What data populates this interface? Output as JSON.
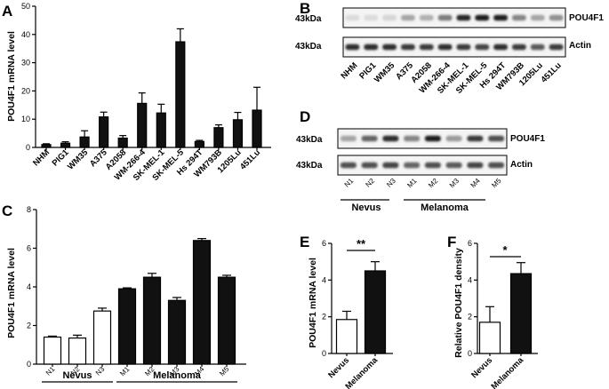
{
  "panels": {
    "a": "A",
    "b": "B",
    "c": "C",
    "d": "D",
    "e": "E",
    "f": "F"
  },
  "chart_data": [
    {
      "panel": "A",
      "type": "bar",
      "ylabel": "POU4F1 mRNA level",
      "ylim": [
        0,
        50
      ],
      "yticks": [
        "0",
        "10",
        "20",
        "30",
        "40",
        "50"
      ],
      "categories": [
        "NHM",
        "PIG1",
        "WM35",
        "A375",
        "A2058",
        "WM-266-4",
        "SK-MEL-1",
        "SK-MEL-5",
        "Hs 294T",
        "WM793B",
        "1205Lu",
        "451Lu"
      ],
      "values": [
        1,
        1.5,
        3.7,
        10.8,
        3.3,
        15.6,
        12.2,
        37.4,
        2.1,
        7,
        9.8,
        13.2
      ],
      "errors": [
        0.3,
        0.5,
        2.2,
        1.7,
        0.9,
        3.7,
        3.1,
        4.6,
        0.4,
        1,
        2.6,
        8.1
      ]
    },
    {
      "panel": "C",
      "type": "bar",
      "ylabel": "POU4F1 mRNA level",
      "ylim": [
        0,
        8
      ],
      "yticks": [
        "0",
        "2",
        "4",
        "6",
        "8"
      ],
      "categories": [
        "N1",
        "N2",
        "N3",
        "M1",
        "M2",
        "M3",
        "M4",
        "M5"
      ],
      "values": [
        1.4,
        1.35,
        2.75,
        3.9,
        4.5,
        3.3,
        6.4,
        4.5
      ],
      "errors": [
        0.05,
        0.15,
        0.15,
        0.05,
        0.2,
        0.15,
        0.1,
        0.1
      ],
      "groups": [
        {
          "label": "Nevus",
          "range": [
            0,
            2
          ]
        },
        {
          "label": "Melanoma",
          "range": [
            3,
            7
          ]
        }
      ]
    },
    {
      "panel": "E",
      "type": "bar",
      "ylabel": "POU4F1 mRNA level",
      "ylim": [
        0,
        6
      ],
      "yticks": [
        "0",
        "2",
        "4",
        "6"
      ],
      "categories": [
        "Nevus",
        "Melanoma"
      ],
      "values": [
        1.85,
        4.5
      ],
      "errors": [
        0.45,
        0.5
      ],
      "significance": "**"
    },
    {
      "panel": "F",
      "type": "bar",
      "ylabel": "Relative POU4F1 density",
      "ylim": [
        0,
        6
      ],
      "yticks": [
        "0",
        "2",
        "4",
        "6"
      ],
      "categories": [
        "Nevus",
        "Melanoma"
      ],
      "values": [
        1.7,
        4.35
      ],
      "errors": [
        0.85,
        0.6
      ],
      "significance": "*"
    }
  ],
  "blot_b": {
    "marker": "43kDa",
    "rows": [
      {
        "label": "POU4F1",
        "intensity": [
          0.05,
          0.05,
          0.08,
          0.3,
          0.25,
          0.5,
          0.9,
          0.95,
          0.95,
          0.45,
          0.3,
          0.4
        ]
      },
      {
        "label": "Actin",
        "intensity": [
          0.85,
          0.85,
          0.85,
          0.8,
          0.8,
          0.85,
          0.8,
          0.75,
          0.85,
          0.8,
          0.65,
          0.8
        ]
      }
    ],
    "lanes": [
      "NHM",
      "PIG1",
      "WM35",
      "A375",
      "A2058",
      "WM-266-4",
      "SK-MEL-1",
      "SK-MEL-5",
      "Hs 294T",
      "WM793B",
      "1205Lu",
      "451Lu"
    ]
  },
  "blot_d": {
    "marker": "43kDa",
    "rows": [
      {
        "label": "POU4F1",
        "intensity": [
          0.3,
          0.6,
          0.85,
          0.45,
          0.95,
          0.35,
          0.8,
          0.7
        ]
      },
      {
        "label": "Actin",
        "intensity": [
          0.7,
          0.7,
          0.75,
          0.6,
          0.7,
          0.65,
          0.75,
          0.7
        ]
      }
    ],
    "lanes": [
      "N1",
      "N2",
      "N3",
      "M1",
      "M2",
      "M3",
      "M4",
      "M5"
    ],
    "groups": [
      {
        "label": "Nevus"
      },
      {
        "label": "Melanoma"
      }
    ]
  }
}
